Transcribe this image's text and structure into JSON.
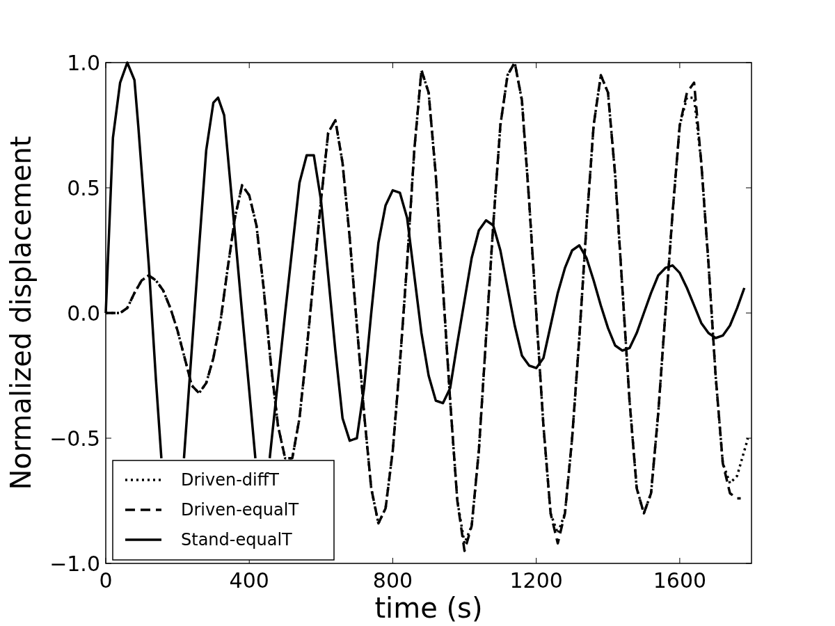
{
  "chart_data": {
    "type": "line",
    "xlabel": "time (s)",
    "ylabel": "Normalized displacement",
    "xlim": [
      0,
      1800
    ],
    "ylim": [
      -1,
      1
    ],
    "xticks": [
      0,
      400,
      800,
      1200,
      1600
    ],
    "yticks": [
      {
        "value": -1,
        "label": "−1.0"
      },
      {
        "value": -0.5,
        "label": "−0.5"
      },
      {
        "value": 0,
        "label": "0.0"
      },
      {
        "value": 0.5,
        "label": "0.5"
      },
      {
        "value": 1,
        "label": "1.0"
      }
    ],
    "legend": "bottom left",
    "grid": false,
    "series": [
      {
        "name": "Driven-diffT",
        "color": "#000000",
        "line_style": "dotted",
        "x": [
          0,
          40,
          60,
          80,
          100,
          120,
          140,
          160,
          180,
          200,
          220,
          240,
          260,
          280,
          300,
          320,
          340,
          360,
          380,
          400,
          420,
          440,
          460,
          480,
          500,
          520,
          540,
          560,
          580,
          600,
          620,
          640,
          660,
          680,
          700,
          720,
          740,
          760,
          780,
          800,
          820,
          840,
          860,
          880,
          900,
          920,
          940,
          960,
          980,
          1000,
          1020,
          1040,
          1060,
          1080,
          1100,
          1120,
          1140,
          1160,
          1180,
          1200,
          1220,
          1240,
          1260,
          1280,
          1300,
          1320,
          1340,
          1360,
          1380,
          1400,
          1420,
          1440,
          1460,
          1480,
          1500,
          1520,
          1540,
          1560,
          1580,
          1600,
          1620,
          1640,
          1660,
          1680,
          1700,
          1720,
          1740,
          1760,
          1780,
          1790
        ],
        "values": [
          0,
          0,
          0.02,
          0.08,
          0.13,
          0.15,
          0.13,
          0.09,
          0.02,
          -0.07,
          -0.18,
          -0.29,
          -0.32,
          -0.28,
          -0.18,
          -0.03,
          0.18,
          0.38,
          0.51,
          0.47,
          0.35,
          0.1,
          -0.2,
          -0.45,
          -0.58,
          -0.58,
          -0.42,
          -0.15,
          0.15,
          0.45,
          0.72,
          0.77,
          0.6,
          0.3,
          -0.05,
          -0.4,
          -0.7,
          -0.84,
          -0.78,
          -0.55,
          -0.2,
          0.2,
          0.65,
          0.97,
          0.88,
          0.55,
          0.1,
          -0.35,
          -0.75,
          -0.92,
          -0.85,
          -0.55,
          -0.1,
          0.35,
          0.75,
          0.95,
          1.0,
          0.85,
          0.45,
          0,
          -0.45,
          -0.8,
          -0.88,
          -0.8,
          -0.5,
          -0.1,
          0.35,
          0.75,
          0.95,
          0.88,
          0.55,
          0.1,
          -0.35,
          -0.7,
          -0.8,
          -0.72,
          -0.4,
          0,
          0.4,
          0.75,
          0.86,
          0.86,
          0.6,
          0.2,
          -0.25,
          -0.6,
          -0.68,
          -0.65,
          -0.55,
          -0.5
        ]
      },
      {
        "name": "Driven-equalT",
        "color": "#000000",
        "line_style": "dashed",
        "x": [
          0,
          40,
          60,
          80,
          100,
          120,
          140,
          160,
          180,
          200,
          220,
          240,
          260,
          280,
          300,
          320,
          340,
          360,
          380,
          400,
          420,
          440,
          460,
          480,
          500,
          520,
          540,
          560,
          580,
          600,
          620,
          640,
          660,
          680,
          700,
          720,
          740,
          760,
          780,
          800,
          820,
          840,
          860,
          880,
          900,
          920,
          940,
          960,
          980,
          1000,
          1020,
          1040,
          1060,
          1080,
          1100,
          1120,
          1140,
          1160,
          1180,
          1200,
          1220,
          1240,
          1260,
          1280,
          1300,
          1320,
          1340,
          1360,
          1380,
          1400,
          1420,
          1440,
          1460,
          1480,
          1500,
          1520,
          1540,
          1560,
          1580,
          1600,
          1620,
          1640,
          1660,
          1680,
          1700,
          1720,
          1740,
          1760,
          1770
        ],
        "values": [
          0,
          0,
          0.02,
          0.08,
          0.13,
          0.15,
          0.13,
          0.09,
          0.02,
          -0.07,
          -0.18,
          -0.29,
          -0.32,
          -0.28,
          -0.18,
          -0.03,
          0.18,
          0.38,
          0.51,
          0.47,
          0.35,
          0.1,
          -0.2,
          -0.45,
          -0.58,
          -0.58,
          -0.42,
          -0.15,
          0.15,
          0.45,
          0.72,
          0.77,
          0.6,
          0.3,
          -0.05,
          -0.4,
          -0.7,
          -0.84,
          -0.78,
          -0.55,
          -0.2,
          0.2,
          0.65,
          0.97,
          0.88,
          0.55,
          0.1,
          -0.35,
          -0.75,
          -0.95,
          -0.85,
          -0.55,
          -0.1,
          0.35,
          0.75,
          0.95,
          1.0,
          0.85,
          0.45,
          0,
          -0.45,
          -0.8,
          -0.92,
          -0.8,
          -0.5,
          -0.1,
          0.35,
          0.75,
          0.95,
          0.88,
          0.55,
          0.1,
          -0.35,
          -0.7,
          -0.8,
          -0.72,
          -0.4,
          0,
          0.4,
          0.75,
          0.88,
          0.92,
          0.6,
          0.2,
          -0.25,
          -0.6,
          -0.72,
          -0.74,
          -0.74
        ]
      },
      {
        "name": "Stand-equalT",
        "color": "#000000",
        "line_style": "solid",
        "x": [
          0,
          20,
          40,
          60,
          80,
          91,
          100,
          120,
          140,
          155,
          180,
          218,
          240,
          260,
          280,
          300,
          313,
          330,
          360,
          380,
          400,
          417,
          440,
          457,
          480,
          500,
          520,
          540,
          560,
          580,
          600,
          620,
          640,
          660,
          680,
          700,
          720,
          740,
          760,
          780,
          800,
          820,
          840,
          860,
          880,
          900,
          920,
          940,
          960,
          980,
          1000,
          1020,
          1040,
          1060,
          1080,
          1100,
          1120,
          1140,
          1160,
          1180,
          1200,
          1220,
          1240,
          1260,
          1280,
          1300,
          1320,
          1340,
          1360,
          1380,
          1400,
          1420,
          1440,
          1460,
          1480,
          1500,
          1520,
          1540,
          1560,
          1580,
          1600,
          1620,
          1640,
          1660,
          1680,
          1700,
          1720,
          1740,
          1760,
          1780
        ],
        "values": [
          0,
          0.7,
          0.92,
          1.0,
          0.93,
          0.74,
          0.57,
          0.19,
          -0.27,
          -0.58,
          null,
          -0.58,
          -0.14,
          0.26,
          0.65,
          0.84,
          0.86,
          0.79,
          0.32,
          0,
          -0.31,
          -0.58,
          null,
          -0.58,
          -0.27,
          0,
          0.26,
          0.52,
          0.63,
          0.63,
          0.45,
          0.15,
          -0.15,
          -0.42,
          -0.51,
          -0.5,
          -0.3,
          0,
          0.28,
          0.43,
          0.49,
          0.48,
          0.38,
          0.15,
          -0.08,
          -0.25,
          -0.35,
          -0.36,
          -0.3,
          -0.12,
          0.05,
          0.22,
          0.33,
          0.37,
          0.35,
          0.25,
          0.1,
          -0.05,
          -0.17,
          -0.21,
          -0.22,
          -0.18,
          -0.05,
          0.08,
          0.18,
          0.25,
          0.27,
          0.22,
          0.13,
          0.03,
          -0.06,
          -0.13,
          -0.15,
          -0.14,
          -0.08,
          0,
          0.08,
          0.15,
          0.18,
          0.19,
          0.16,
          0.1,
          0.03,
          -0.04,
          -0.08,
          -0.1,
          -0.09,
          -0.05,
          0.02,
          0.1
        ]
      }
    ]
  }
}
